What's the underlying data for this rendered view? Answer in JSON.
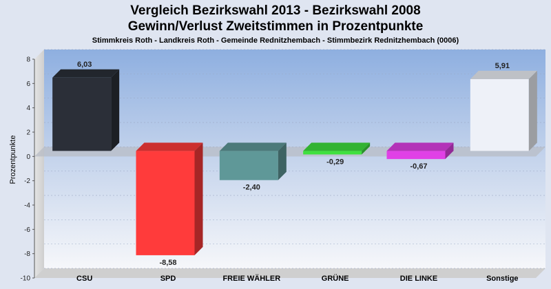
{
  "chart_data": {
    "type": "bar",
    "title": "Vergleich Bezirkswahl 2013 - Bezirkswahl 2008",
    "title_line2": "Gewinn/Verlust Zweitstimmen in Prozentpunkte",
    "subtitle": "Stimmkreis Roth - Landkreis Roth - Gemeinde Rednitzhembach - Stimmbezirk Rednitzhembach (0006)",
    "ylabel": "Prozentpunkte",
    "xlabel": "",
    "ylim": [
      -10,
      8
    ],
    "yticks": [
      8,
      6,
      4,
      2,
      0,
      -2,
      -4,
      -6,
      -8,
      -10
    ],
    "grid": true,
    "legend": "none",
    "categories": [
      "CSU",
      "SPD",
      "FREIE WÄHLER",
      "GRÜNE",
      "DIE LINKE",
      "Sonstige"
    ],
    "values": [
      6.03,
      -8.58,
      -2.4,
      -0.29,
      -0.67,
      5.91
    ],
    "value_labels": [
      "6,03",
      "-8,58",
      "-2,40",
      "-0,29",
      "-0,67",
      "5,91"
    ],
    "colors": [
      "#2b2f38",
      "#ff3b3b",
      "#5f9898",
      "#3fe03f",
      "#e040e6",
      "#eef1f8"
    ]
  }
}
